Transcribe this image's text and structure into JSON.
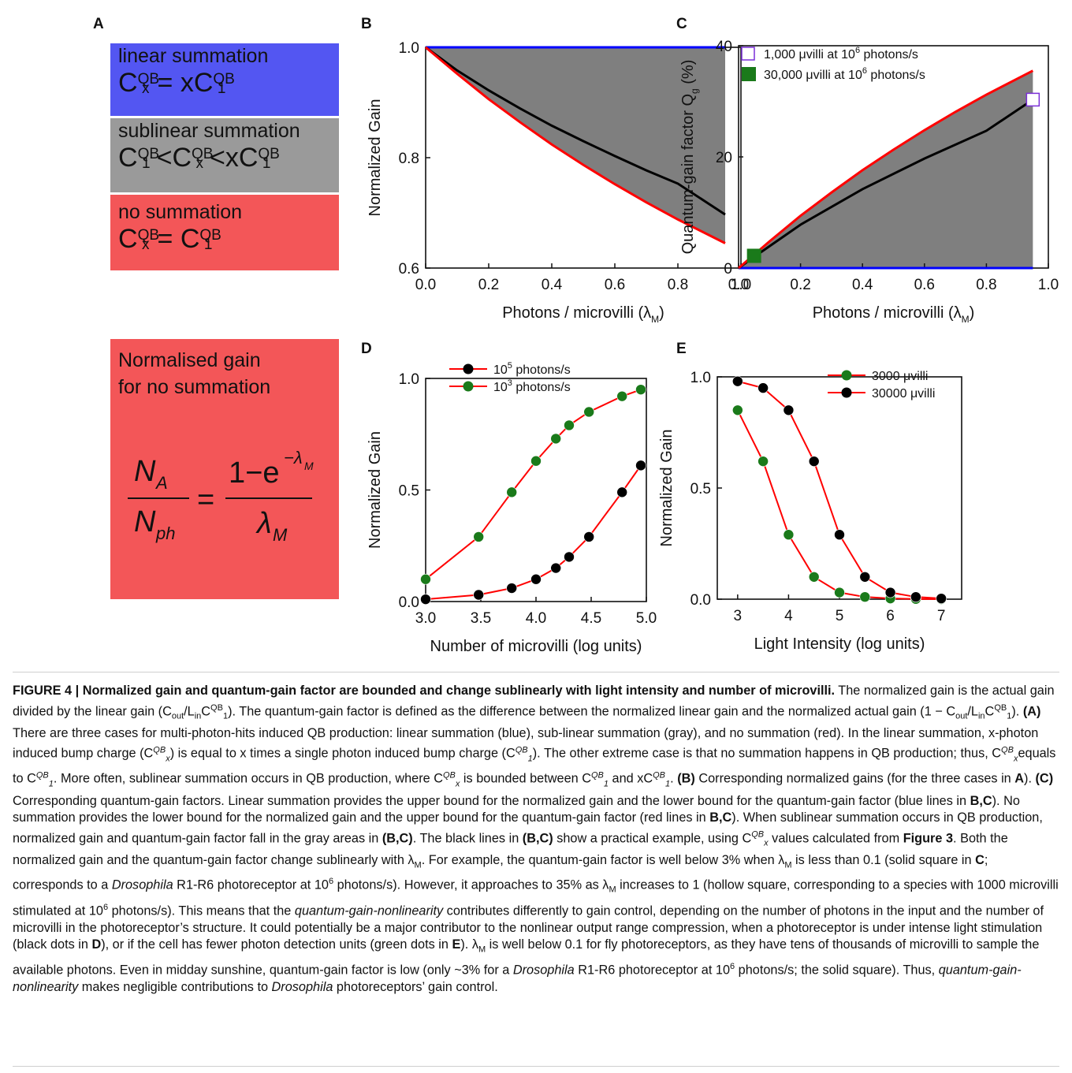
{
  "panels": {
    "A": {
      "letter": "A",
      "boxes": [
        {
          "title": "linear summation",
          "eq": "C",
          "color": "#5356f2"
        },
        {
          "title": "sublinear summation",
          "color": "#9a9a9a"
        },
        {
          "title": "no summation",
          "color": "#f35658"
        }
      ],
      "gain_box": {
        "line1": "Normalised gain",
        "line2": "for no summation"
      },
      "formula": {
        "lhs_num": "N",
        "lhs_num_sub": "A",
        "lhs_den": "N",
        "lhs_den_sub": "ph",
        "rhs_num": "1−e",
        "rhs_exp": "−λ",
        "rhs_exp_sub": "M",
        "rhs_den": "λ",
        "rhs_den_sub": "M",
        "equals": "="
      }
    },
    "B": {
      "letter": "B"
    },
    "C": {
      "letter": "C"
    },
    "D": {
      "letter": "D"
    },
    "E": {
      "letter": "E"
    }
  },
  "chart_data": [
    {
      "id": "B",
      "type": "area",
      "xlabel": "Photons / microvilli (λ",
      "xlabel_sub": "M",
      "xlabel_end": ")",
      "ylabel": "Normalized Gain",
      "xlim": [
        0.0,
        1.0
      ],
      "ylim": [
        0.6,
        1.0
      ],
      "xticks": [
        "0.0",
        "0.2",
        "0.4",
        "0.6",
        "0.8",
        "1.0"
      ],
      "yticks": [
        "0.6",
        "0.8",
        "1.0"
      ],
      "series": [
        {
          "color": "#0000ff",
          "x": [
            0,
            0.95
          ],
          "y": [
            1.0,
            1.0
          ]
        },
        {
          "color": "#000000",
          "x": [
            0,
            0.1,
            0.2,
            0.3,
            0.4,
            0.5,
            0.6,
            0.7,
            0.8,
            0.95
          ],
          "y": [
            1.0,
            0.958,
            0.922,
            0.889,
            0.858,
            0.83,
            0.803,
            0.777,
            0.753,
            0.697
          ]
        },
        {
          "color": "#ff0000",
          "x": [
            0,
            0.1,
            0.2,
            0.3,
            0.4,
            0.5,
            0.6,
            0.7,
            0.8,
            0.95
          ],
          "y": [
            1.0,
            0.952,
            0.906,
            0.864,
            0.824,
            0.787,
            0.752,
            0.719,
            0.688,
            0.645
          ]
        }
      ]
    },
    {
      "id": "C",
      "type": "area",
      "xlabel": "Photons / microvilli (λ",
      "xlabel_sub": "M",
      "xlabel_end": ")",
      "ylabel": "Quantum-gain factor Q",
      "ylabel_sub": "g",
      "ylabel_end": " (%)",
      "xlim": [
        0.0,
        1.0
      ],
      "ylim": [
        0,
        40
      ],
      "xticks": [
        "0.0",
        "0.2",
        "0.4",
        "0.6",
        "0.8",
        "1.0"
      ],
      "yticks": [
        "0",
        "20",
        "40"
      ],
      "legend": [
        {
          "label": "1,000 μvilli at 10",
          "sup": "6",
          "end": " photons/s",
          "marker": "hollow-square",
          "color": "#7b2fd8"
        },
        {
          "label": "30,000 μvilli at 10",
          "sup": "6",
          "end": " photons/s",
          "marker": "filled-square",
          "color": "#1a7a1a"
        }
      ],
      "series": [
        {
          "color": "#0000ff",
          "x": [
            0,
            0.95
          ],
          "y": [
            0,
            0
          ]
        },
        {
          "color": "#000000",
          "x": [
            0,
            0.05,
            0.2,
            0.4,
            0.6,
            0.8,
            0.95
          ],
          "y": [
            0,
            2,
            7.8,
            14.2,
            19.7,
            24.7,
            30.3
          ]
        },
        {
          "color": "#ff0000",
          "x": [
            0,
            0.1,
            0.2,
            0.3,
            0.4,
            0.5,
            0.6,
            0.7,
            0.8,
            0.95
          ],
          "y": [
            0,
            4.8,
            9.4,
            13.6,
            17.6,
            21.3,
            24.8,
            28.1,
            31.2,
            35.5
          ]
        }
      ],
      "markers": [
        {
          "x": 0.95,
          "y": 30.3,
          "marker": "hollow-square"
        },
        {
          "x": 0.05,
          "y": 2.2,
          "marker": "filled-square"
        }
      ]
    },
    {
      "id": "D",
      "type": "line",
      "xlabel": "Number of microvilli (log units)",
      "ylabel": "Normalized Gain",
      "xlim": [
        3.0,
        5.0
      ],
      "ylim": [
        0.0,
        1.0
      ],
      "xticks": [
        "3.0",
        "3.5",
        "4.0",
        "4.5",
        "5.0"
      ],
      "yticks": [
        "0.0",
        "0.5",
        "1.0"
      ],
      "series": [
        {
          "name": "10",
          "name_sup": "5",
          "name_end": " photons/s",
          "color": "#000000",
          "x": [
            3.0,
            3.48,
            3.78,
            4.0,
            4.18,
            4.3,
            4.48,
            4.78,
            4.95
          ],
          "y": [
            0.01,
            0.03,
            0.06,
            0.1,
            0.15,
            0.2,
            0.29,
            0.49,
            0.61
          ]
        },
        {
          "name": "10",
          "name_sup": "3",
          "name_end": " photons/s",
          "color": "#1a7a1a",
          "x": [
            3.0,
            3.48,
            3.78,
            4.0,
            4.18,
            4.3,
            4.48,
            4.78,
            4.95
          ],
          "y": [
            0.1,
            0.29,
            0.49,
            0.63,
            0.73,
            0.79,
            0.85,
            0.92,
            0.95
          ]
        }
      ]
    },
    {
      "id": "E",
      "type": "line",
      "xlabel": "Light Intensity (log units)",
      "ylabel": "Normalized Gain",
      "xlim": [
        2.6,
        7.4
      ],
      "ylim": [
        0.0,
        1.0
      ],
      "xticks": [
        "3",
        "4",
        "5",
        "6",
        "7"
      ],
      "yticks": [
        "0.0",
        "0.5",
        "1.0"
      ],
      "series": [
        {
          "name": "3000 μvilli",
          "color": "#1a7a1a",
          "x": [
            3,
            3.5,
            4,
            4.5,
            5,
            5.5,
            6,
            6.5,
            7
          ],
          "y": [
            0.85,
            0.62,
            0.29,
            0.1,
            0.03,
            0.01,
            0.003,
            0.001,
            0.0
          ]
        },
        {
          "name": "30000 μvilli",
          "color": "#000000",
          "x": [
            3,
            3.5,
            4,
            4.5,
            5,
            5.5,
            6,
            6.5,
            7
          ],
          "y": [
            0.98,
            0.95,
            0.85,
            0.62,
            0.29,
            0.1,
            0.03,
            0.01,
            0.003
          ]
        }
      ]
    }
  ],
  "caption": {
    "title": "FIGURE 4 | Normalized gain and quantum-gain factor are bounded and change sublinearly with light intensity and number of microvilli.",
    "p1": " The normalized gain is the actual gain divided by the linear gain (C",
    "p1_sub": "out",
    "p1_mid": "/L",
    "p1_in": "in",
    "p1_c": "C",
    "p1_end": "). The quantum-gain factor is defined as the difference between the normalized linear gain and the normalized actual gain (1 − C",
    "p2": "out",
    "p3": "/L",
    "p4": "in",
    "p5": "C",
    "p6": ").",
    "A_label": "(A)",
    "A_text": " There are three cases for multi-photon-hits induced QB production: linear summation (blue), sub-linear summation (gray), and no summation (red). In the linear summation, x-photon induced bump charge (C",
    "A_text2": ") is equal to x times a single photon induced bump charge (C",
    "A_text3": "). The other extreme case is that no summation happens in QB production; thus, C",
    "A_text4": "equals to C",
    "A_text5": ". More often, sublinear summation occurs in QB production, where C",
    "A_text6": " is bounded between C",
    "A_text7": " and xC",
    "A_text8": ".",
    "B_label": "(B)",
    "B_text": " Corresponding normalized gains (for the three cases in ",
    "B_ref": "A",
    "B_end": ").",
    "C_label": "(C)",
    "C_text": " Corresponding quantum-gain factors. Linear summation provides the upper bound for the normalized gain and the lower bound for the quantum-gain factor (blue lines in ",
    "BC": "B,C",
    "C_text2": "). No summation provides the lower bound for the normalized gain and the upper bound for the quantum-gain factor (red lines in ",
    "C_text3": "). When sublinear summation occurs in QB production, normalized gain and quantum-gain factor fall in the gray areas in ",
    "BC_paren": "(B,C)",
    "C_text4": ". The black lines in ",
    "C_text5": " show a practical example, using C",
    "C_text6": " values calculated from ",
    "fig3": "Figure 3",
    "C_text7": ". Both the normalized gain and the quantum-gain factor change sublinearly with λ",
    "C_text8": ". For example, the quantum-gain factor is well below 3% when λ",
    "C_text9": " is less than 0.1 (solid square in ",
    "C_ref": "C",
    "C_text10": "; corresponds to a ",
    "dros": "Drosophila",
    "C_text11": " R1-R6 photoreceptor at 10",
    "C_text12": " photons/s). However, it approaches to 35% as λ",
    "C_text13": " increases to 1 (hollow square, corresponding to a species with 1000 microvilli stimulated at 10",
    "C_text14": " photons/s). This means that the ",
    "qgn": "quantum-gain-nonlinearity",
    "C_text15": " contributes differently to gain control, depending on the number of photons in the input and the number of microvilli in the photoreceptor’s structure. It could potentially be a major contributor to the nonlinear output range compression, when a photoreceptor is under intense light stimulation (black dots in ",
    "D_ref": "D",
    "C_text16": "), or if the cell has fewer photon detection units (green dots in ",
    "E_ref": "E",
    "C_text17": "). λ",
    "C_text18": " is well below 0.1 for fly photoreceptors, as they have tens of thousands of microvilli to sample the available photons. Even in midday sunshine, quantum-gain factor is low (only ~3% for a ",
    "C_text19": " R1-R6 photoreceptor at 10",
    "C_text20": " photons/s; the solid square). Thus, ",
    "C_text21": " makes negligible contributions to ",
    "C_text22": " photoreceptors’ gain control.",
    "QB": "QB",
    "x": "x",
    "one": "1",
    "six": "6",
    "M": "M"
  }
}
